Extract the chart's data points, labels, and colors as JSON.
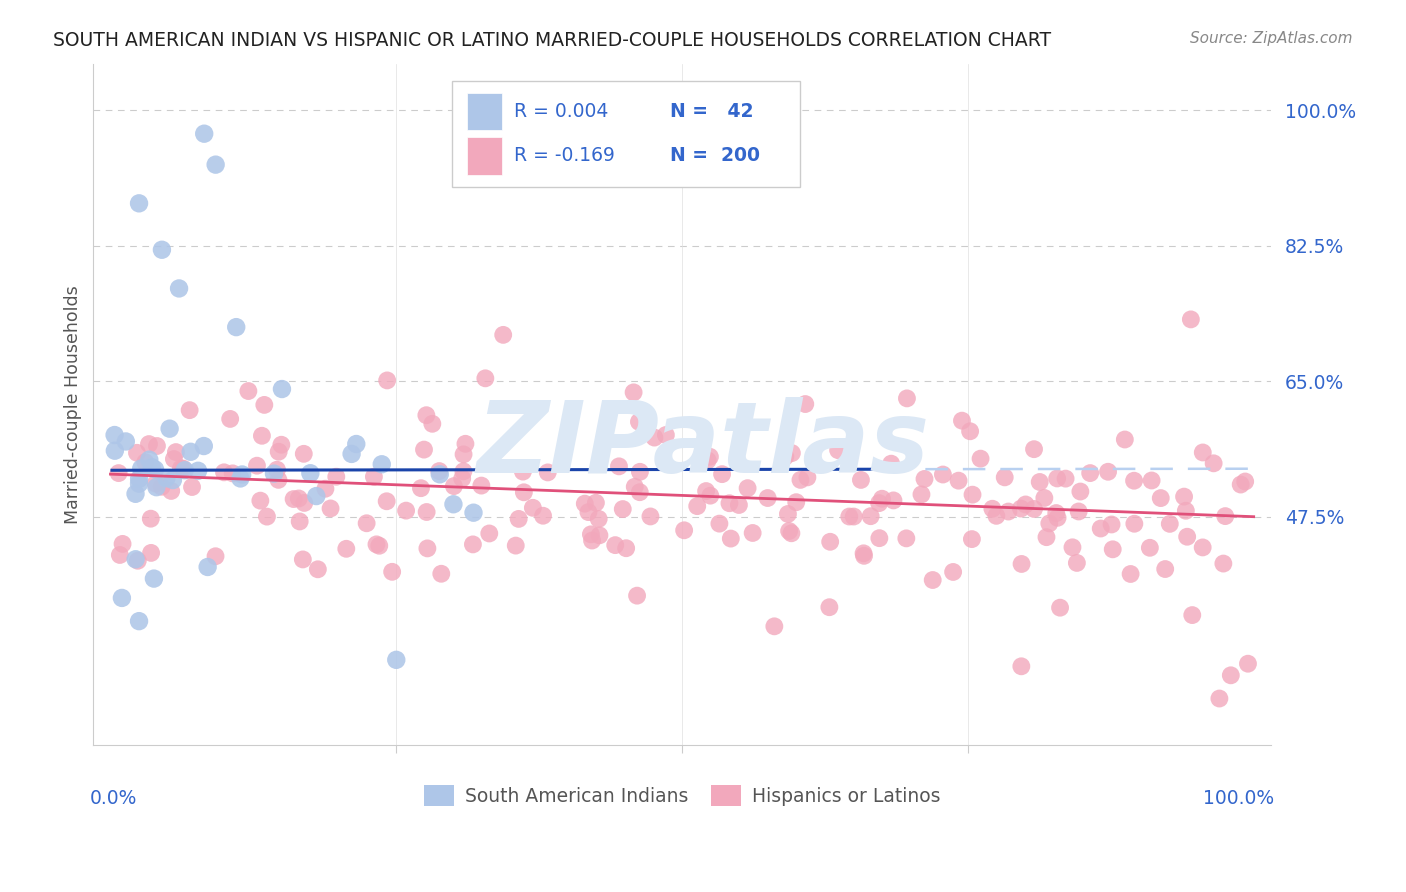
{
  "title": "SOUTH AMERICAN INDIAN VS HISPANIC OR LATINO MARRIED-COUPLE HOUSEHOLDS CORRELATION CHART",
  "source": "Source: ZipAtlas.com",
  "ylabel": "Married-couple Households",
  "legend_label1": "South American Indians",
  "legend_label2": "Hispanics or Latinos",
  "R1": 0.004,
  "N1": 42,
  "R2": -0.169,
  "N2": 200,
  "blue_scatter_color": "#aec6e8",
  "pink_scatter_color": "#f2a8bc",
  "blue_line_color": "#1a44aa",
  "pink_line_color": "#e0507a",
  "dashed_line_color": "#b8d0f0",
  "watermark_color": "#dce8f5",
  "title_color": "#222222",
  "axis_label_color": "#3366cc",
  "source_color": "#888888",
  "background_color": "#ffffff",
  "grid_color": "#cccccc",
  "ytick_values": [
    0.475,
    0.65,
    0.825,
    1.0
  ],
  "ytick_labels": [
    "47.5%",
    "65.0%",
    "82.5%",
    "100.0%"
  ],
  "ymin": 0.18,
  "ymax": 1.06,
  "xmin": -0.015,
  "xmax": 1.015,
  "blue_solid_xend": 0.68,
  "blue_line_y_intercept": 0.535,
  "blue_line_slope": 0.002,
  "pink_line_y_intercept": 0.53,
  "pink_line_slope": -0.055
}
